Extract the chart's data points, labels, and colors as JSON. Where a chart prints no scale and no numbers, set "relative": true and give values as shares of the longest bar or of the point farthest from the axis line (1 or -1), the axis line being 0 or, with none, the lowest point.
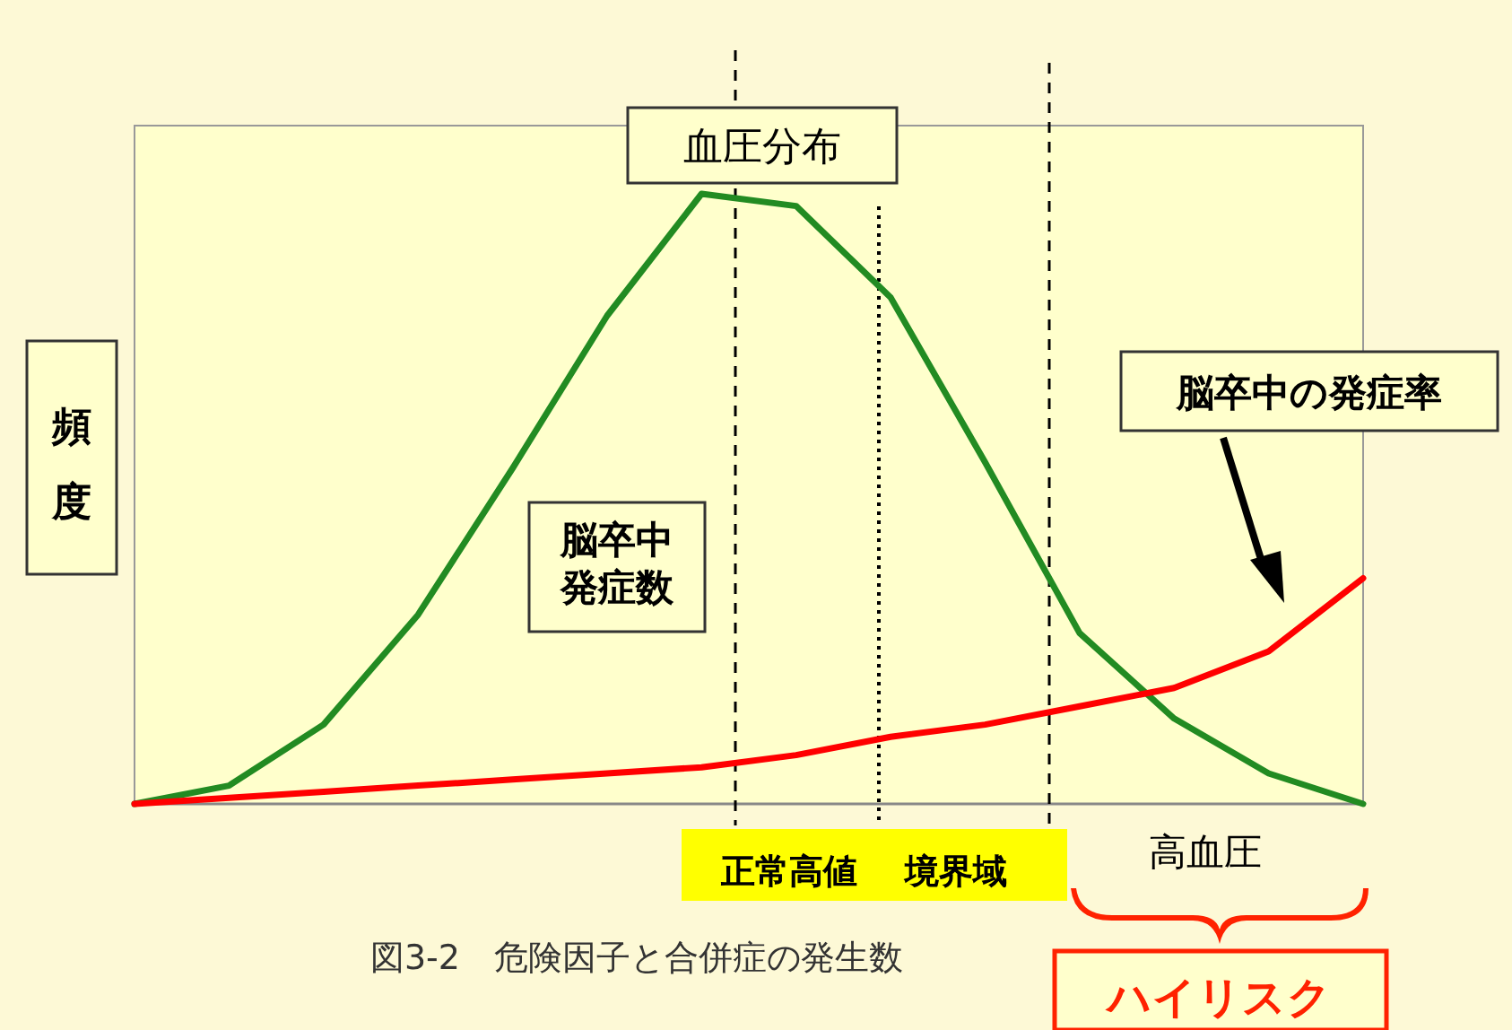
{
  "chart_data": {
    "type": "line",
    "relative": true,
    "ylabel": "頻度",
    "categories": [
      null,
      null,
      null,
      null,
      null,
      null,
      null,
      null,
      null,
      null,
      null,
      null,
      null,
      null
    ],
    "series": [
      {
        "name": "血圧分布",
        "color": "#228b22",
        "values": [
          0,
          0.03,
          0.13,
          0.31,
          0.55,
          0.8,
          1,
          0.98,
          0.83,
          0.56,
          0.28,
          0.14,
          0.05,
          0
        ]
      },
      {
        "name": "脳卒中の発症率",
        "color": "#ff0000",
        "values": [
          0,
          0.01,
          0.02,
          0.03,
          0.04,
          0.05,
          0.06,
          0.08,
          0.11,
          0.13,
          0.16,
          0.19,
          0.25,
          0.37
        ]
      }
    ],
    "annotations": [
      "脳卒中発症数",
      "正常高値",
      "境界域",
      "高血圧",
      "ハイリスク",
      "図3-2　危険因子と合併症の発生数"
    ]
  }
}
